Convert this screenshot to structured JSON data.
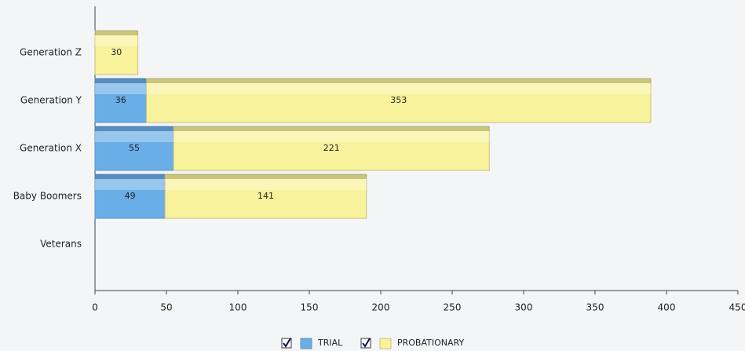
{
  "chart_data": {
    "type": "stacked-bar-horizontal",
    "categories": [
      "Generation Z",
      "Generation Y",
      "Generation X",
      "Baby Boomers",
      "Veterans"
    ],
    "series": [
      {
        "name": "TRIAL",
        "color": "#6aaee8",
        "values": [
          null,
          36,
          55,
          49,
          null
        ]
      },
      {
        "name": "PROBATIONARY",
        "color": "#f8f29c",
        "values": [
          30,
          353,
          221,
          141,
          null
        ]
      }
    ],
    "xlim": [
      0,
      450
    ],
    "xticks": [
      0,
      50,
      100,
      150,
      200,
      250,
      300,
      350,
      400,
      450
    ],
    "legend": "bottom"
  }
}
